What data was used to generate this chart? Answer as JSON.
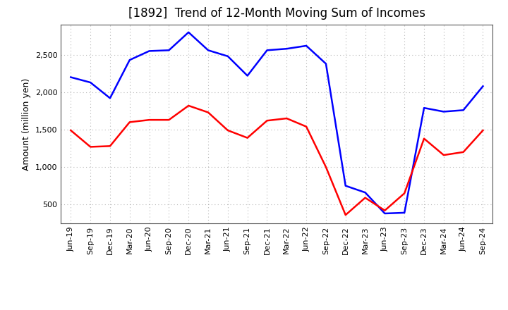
{
  "title": "[1892]  Trend of 12-Month Moving Sum of Incomes",
  "ylabel": "Amount (million yen)",
  "labels": [
    "Jun-19",
    "Sep-19",
    "Dec-19",
    "Mar-20",
    "Jun-20",
    "Sep-20",
    "Dec-20",
    "Mar-21",
    "Jun-21",
    "Sep-21",
    "Dec-21",
    "Mar-22",
    "Jun-22",
    "Sep-22",
    "Dec-22",
    "Mar-23",
    "Jun-23",
    "Sep-23",
    "Dec-23",
    "Mar-24",
    "Jun-24",
    "Sep-24"
  ],
  "ordinary_income": [
    2200,
    2130,
    1920,
    2430,
    2550,
    2560,
    2800,
    2560,
    2480,
    2220,
    2560,
    2580,
    2620,
    2380,
    750,
    660,
    380,
    390,
    1790,
    1740,
    1760,
    2080
  ],
  "net_income": [
    1490,
    1270,
    1280,
    1600,
    1630,
    1630,
    1820,
    1730,
    1490,
    1390,
    1620,
    1650,
    1540,
    1000,
    360,
    590,
    420,
    650,
    1380,
    1160,
    1200,
    1490
  ],
  "ordinary_color": "#0000FF",
  "net_color": "#FF0000",
  "ylim_min": 250,
  "ylim_max": 2900,
  "yticks": [
    500,
    1000,
    1500,
    2000,
    2500
  ],
  "background_color": "#FFFFFF",
  "grid_color": "#888888",
  "title_fontsize": 12,
  "axis_fontsize": 9,
  "tick_fontsize": 8,
  "legend_fontsize": 9,
  "linewidth": 1.8
}
